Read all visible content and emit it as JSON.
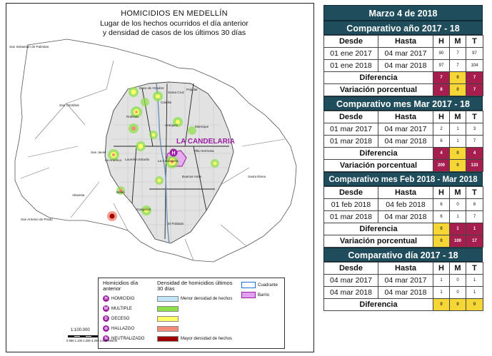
{
  "map": {
    "title_1": "HOMICIDIOS EN MEDELLÍN",
    "title_2": "Lugar de los hechos ocurridos el día anterior",
    "title_3": "y densidad de casos de los últimos 30 días",
    "highlight_label": "LA CANDELARIA",
    "places": [
      "San Sebastián de Palmitas",
      "San Cristóbal",
      "San Javier",
      "La América",
      "Laureles Estadio",
      "Robledo",
      "Castilla",
      "Aranjuez",
      "Manrique",
      "Villa Hermosa",
      "Buenos Aires",
      "Santa Elena",
      "Belén",
      "Guayabal",
      "El Poblado",
      "Altavista",
      "San Antonio de Prado",
      "Popular",
      "Santa Cruz",
      "Doce de Octubre",
      "La Candelaria"
    ],
    "legend": {
      "marker_heading": "Homicidios día anterior",
      "density_heading": "Densidad de homicidios últimos 30 días",
      "markers": [
        {
          "glyph": "H",
          "label": "HOMICIDIO"
        },
        {
          "glyph": "M",
          "label": "MULTIPLE"
        },
        {
          "glyph": "D",
          "label": "DECESO"
        },
        {
          "glyph": "⊖",
          "label": "HALLAZGO"
        },
        {
          "glyph": "N",
          "label": "NEUTRALIZADO"
        }
      ],
      "density": [
        {
          "label": "Menor densidad de hechos",
          "color": "#bfe6f5"
        },
        {
          "label": "",
          "color": "#8ee04a"
        },
        {
          "label": "",
          "color": "#ffff66"
        },
        {
          "label": "",
          "color": "#f48a7a"
        },
        {
          "label": "Mayor densidad de hechos",
          "color": "#9c0000"
        }
      ],
      "boundaries": [
        {
          "label": "Cuadrante",
          "color": "#1f6fd1"
        },
        {
          "label": "Barrio",
          "color": "#e2a0f0"
        }
      ]
    },
    "scale": "1:100.000",
    "scale_ticks": "0   550 1.100   2.200   3.300   4.400",
    "scale_unit": "Metros"
  },
  "stats": {
    "date": "Marzo 4 de 2018",
    "headers": {
      "from": "Desde",
      "to": "Hasta",
      "h": "H",
      "m": "M",
      "t": "T"
    },
    "diff_label": "Diferencia",
    "pct_label": "Variación porcentual",
    "sections": [
      {
        "title": "Comparativo año 2017 - 18",
        "rows": [
          {
            "from": "01 ene 2017",
            "to": "04 mar 2017",
            "h": "90",
            "m": "7",
            "t": "97"
          },
          {
            "from": "01 ene 2018",
            "to": "04 mar 2018",
            "h": "97",
            "m": "7",
            "t": "104"
          }
        ],
        "diff": {
          "h": "7",
          "m": "0",
          "t": "7"
        },
        "pct": {
          "h": "8",
          "m": "0",
          "t": "7"
        }
      },
      {
        "title": "Comparativo mes Mar 2017 - 18",
        "rows": [
          {
            "from": "01 mar 2017",
            "to": "04 mar 2017",
            "h": "2",
            "m": "1",
            "t": "3"
          },
          {
            "from": "01 mar 2018",
            "to": "04 mar 2018",
            "h": "6",
            "m": "1",
            "t": "7"
          }
        ],
        "diff": {
          "h": "4",
          "m": "0",
          "t": "4"
        },
        "pct": {
          "h": "200",
          "m": "0",
          "t": "133"
        }
      },
      {
        "title": "Comparativo mes Feb 2018 - Mar 2018",
        "rows": [
          {
            "from": "01 feb 2018",
            "to": "04 feb 2018",
            "h": "6",
            "m": "0",
            "t": "6"
          },
          {
            "from": "01 mar 2018",
            "to": "04 mar 2018",
            "h": "6",
            "m": "1",
            "t": "7"
          }
        ],
        "diff": {
          "h": "0",
          "m": "1",
          "t": "1"
        },
        "pct": {
          "h": "0",
          "m": "100",
          "t": "17"
        }
      },
      {
        "title": "Comparativo día 2017 - 18",
        "rows": [
          {
            "from": "04 mar 2017",
            "to": "04 mar 2017",
            "h": "1",
            "m": "0",
            "t": "1"
          },
          {
            "from": "04 mar 2018",
            "to": "04 mar 2018",
            "h": "1",
            "m": "0",
            "t": "1"
          }
        ],
        "diff": {
          "h": "0",
          "m": "0",
          "t": "0"
        }
      }
    ]
  }
}
